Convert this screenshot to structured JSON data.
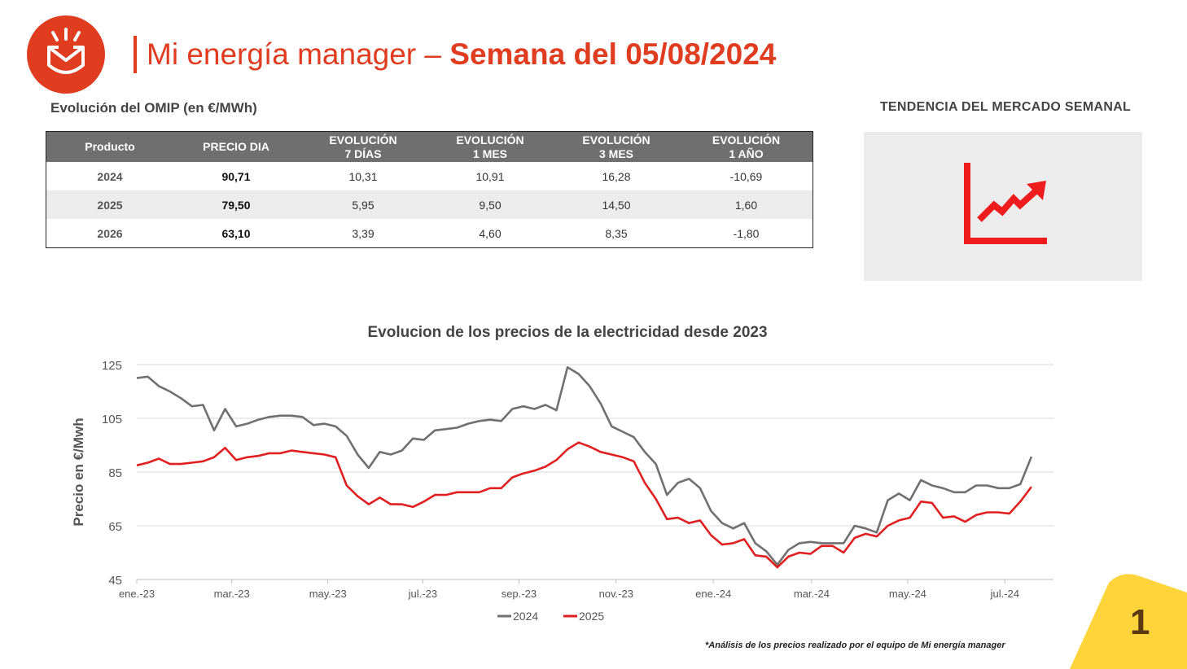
{
  "header": {
    "title_light": "Mi energía manager",
    "title_dash": "–",
    "title_bold": "Semana del 05/08/2024",
    "brand_color": "#e03c20"
  },
  "omip": {
    "label": "Evolución del OMIP (en €/MWh)",
    "columns": [
      {
        "line1": "Producto",
        "line2": ""
      },
      {
        "line1": "PRECIO DIA",
        "line2": ""
      },
      {
        "line1": "EVOLUCIÓN",
        "line2": "7 DÍAS"
      },
      {
        "line1": "EVOLUCIÓN",
        "line2": "1 MES"
      },
      {
        "line1": "EVOLUCIÓN",
        "line2": "3 MES"
      },
      {
        "line1": "EVOLUCIÓN",
        "line2": "1 AÑO"
      }
    ],
    "rows": [
      {
        "producto": "2024",
        "precio": "90,71",
        "d7": "10,31",
        "m1": "10,91",
        "m3": "16,28",
        "y1": "-10,69"
      },
      {
        "producto": "2025",
        "precio": "79,50",
        "d7": "5,95",
        "m1": "9,50",
        "m3": "14,50",
        "y1": "1,60"
      },
      {
        "producto": "2026",
        "precio": "63,10",
        "d7": "3,39",
        "m1": "4,60",
        "m3": "8,35",
        "y1": "-1,80"
      }
    ]
  },
  "trend": {
    "label": "TENDENCIA DEL MERCADO SEMANAL",
    "icon": "trending-up-chart-icon",
    "direction": "up"
  },
  "chart_data": {
    "type": "line",
    "title": "Evolucion de los precios de la electricidad desde 2023",
    "xlabel": "",
    "ylabel": "Precio en €/Mwh",
    "ylim": [
      45,
      125
    ],
    "yticks": [
      45,
      65,
      85,
      105,
      125
    ],
    "xlim_weeks": [
      0,
      83
    ],
    "xticks": [
      {
        "label": "ene.-23",
        "week": 0
      },
      {
        "label": "mar.-23",
        "week": 8.6
      },
      {
        "label": "may.-23",
        "week": 17.3
      },
      {
        "label": "jul.-23",
        "week": 25.9
      },
      {
        "label": "sep.-23",
        "week": 34.6
      },
      {
        "label": "nov.-23",
        "week": 43.4
      },
      {
        "label": "ene.-24",
        "week": 52.2
      },
      {
        "label": "mar.-24",
        "week": 61.1
      },
      {
        "label": "may.-24",
        "week": 69.8
      },
      {
        "label": "jul.-24",
        "week": 78.6
      }
    ],
    "grid": true,
    "legend_position": "bottom",
    "series": [
      {
        "name": "2024",
        "color": "#707070",
        "points": [
          [
            0,
            120
          ],
          [
            1,
            120.5
          ],
          [
            2,
            117
          ],
          [
            3,
            115
          ],
          [
            4,
            112.5
          ],
          [
            5,
            109.5
          ],
          [
            6,
            110
          ],
          [
            7,
            100.5
          ],
          [
            8,
            108.5
          ],
          [
            9,
            102
          ],
          [
            10,
            103
          ],
          [
            11,
            104.5
          ],
          [
            12,
            105.5
          ],
          [
            13,
            106
          ],
          [
            14,
            106
          ],
          [
            15,
            105.5
          ],
          [
            16,
            102.5
          ],
          [
            17,
            103
          ],
          [
            18,
            102
          ],
          [
            19,
            98.5
          ],
          [
            20,
            91.5
          ],
          [
            21,
            86.5
          ],
          [
            22,
            92.5
          ],
          [
            23,
            91.5
          ],
          [
            24,
            93
          ],
          [
            25,
            97.5
          ],
          [
            26,
            97
          ],
          [
            27,
            100.5
          ],
          [
            28,
            101
          ],
          [
            29,
            101.5
          ],
          [
            30,
            103
          ],
          [
            31,
            104
          ],
          [
            32,
            104.5
          ],
          [
            33,
            104
          ],
          [
            34,
            108.5
          ],
          [
            35,
            109.5
          ],
          [
            36,
            108.5
          ],
          [
            37,
            110
          ],
          [
            38,
            108
          ],
          [
            39,
            124
          ],
          [
            40,
            121.5
          ],
          [
            41,
            117
          ],
          [
            42,
            110.5
          ],
          [
            43,
            102
          ],
          [
            44,
            100
          ],
          [
            45,
            98
          ],
          [
            46,
            92.5
          ],
          [
            47,
            88
          ],
          [
            48,
            76.5
          ],
          [
            49,
            81
          ],
          [
            50,
            82.5
          ],
          [
            51,
            79
          ],
          [
            52,
            70.5
          ],
          [
            53,
            66
          ],
          [
            54,
            64
          ],
          [
            55,
            66
          ],
          [
            56,
            58.5
          ],
          [
            57,
            55.5
          ],
          [
            58,
            50.5
          ],
          [
            59,
            56
          ],
          [
            60,
            58.5
          ],
          [
            61,
            59
          ],
          [
            62,
            58.5
          ],
          [
            63,
            58.5
          ],
          [
            64,
            58.5
          ],
          [
            65,
            65
          ],
          [
            66,
            64
          ],
          [
            67,
            62.5
          ],
          [
            68,
            74.5
          ],
          [
            69,
            77
          ],
          [
            70,
            74.5
          ],
          [
            71,
            82
          ],
          [
            72,
            80
          ],
          [
            73,
            79
          ],
          [
            74,
            77.5
          ],
          [
            75,
            77.5
          ],
          [
            76,
            80
          ],
          [
            77,
            80
          ],
          [
            78,
            79
          ],
          [
            79,
            79
          ],
          [
            80,
            80.5
          ],
          [
            81,
            90.7
          ]
        ]
      },
      {
        "name": "2025",
        "color": "#e02020",
        "points": [
          [
            0,
            87.5
          ],
          [
            1,
            88.5
          ],
          [
            2,
            90
          ],
          [
            3,
            88
          ],
          [
            4,
            88
          ],
          [
            5,
            88.5
          ],
          [
            6,
            89
          ],
          [
            7,
            90.5
          ],
          [
            8,
            94
          ],
          [
            9,
            89.5
          ],
          [
            10,
            90.5
          ],
          [
            11,
            91
          ],
          [
            12,
            92
          ],
          [
            13,
            92
          ],
          [
            14,
            93
          ],
          [
            15,
            92.5
          ],
          [
            16,
            92
          ],
          [
            17,
            91.5
          ],
          [
            18,
            90.5
          ],
          [
            19,
            80
          ],
          [
            20,
            76
          ],
          [
            21,
            73
          ],
          [
            22,
            75.5
          ],
          [
            23,
            73
          ],
          [
            24,
            73
          ],
          [
            25,
            72
          ],
          [
            26,
            74
          ],
          [
            27,
            76.5
          ],
          [
            28,
            76.5
          ],
          [
            29,
            77.5
          ],
          [
            30,
            77.5
          ],
          [
            31,
            77.5
          ],
          [
            32,
            79
          ],
          [
            33,
            79
          ],
          [
            34,
            83
          ],
          [
            35,
            84.5
          ],
          [
            36,
            85.5
          ],
          [
            37,
            87
          ],
          [
            38,
            89.5
          ],
          [
            39,
            93.5
          ],
          [
            40,
            96
          ],
          [
            41,
            94.5
          ],
          [
            42,
            92.5
          ],
          [
            43,
            91.5
          ],
          [
            44,
            90.5
          ],
          [
            45,
            89
          ],
          [
            46,
            81
          ],
          [
            47,
            75
          ],
          [
            48,
            67.5
          ],
          [
            49,
            68
          ],
          [
            50,
            66
          ],
          [
            51,
            67
          ],
          [
            52,
            61.5
          ],
          [
            53,
            58
          ],
          [
            54,
            58.5
          ],
          [
            55,
            60
          ],
          [
            56,
            54
          ],
          [
            57,
            53.5
          ],
          [
            58,
            49.5
          ],
          [
            59,
            53.5
          ],
          [
            60,
            55
          ],
          [
            61,
            54.5
          ],
          [
            62,
            57.5
          ],
          [
            63,
            57.5
          ],
          [
            64,
            55
          ],
          [
            65,
            60.5
          ],
          [
            66,
            62
          ],
          [
            67,
            61
          ],
          [
            68,
            65
          ],
          [
            69,
            67
          ],
          [
            70,
            68
          ],
          [
            71,
            74
          ],
          [
            72,
            73.5
          ],
          [
            73,
            68
          ],
          [
            74,
            68.5
          ],
          [
            75,
            66.5
          ],
          [
            76,
            69
          ],
          [
            77,
            70
          ],
          [
            78,
            70
          ],
          [
            79,
            69.5
          ],
          [
            80,
            74
          ],
          [
            81,
            79.5
          ]
        ]
      }
    ]
  },
  "footnote": "*Análisis de los precios realizado por el equipo de Mi energía manager",
  "page": {
    "number": "1",
    "corner_color": "#ffd43a"
  }
}
